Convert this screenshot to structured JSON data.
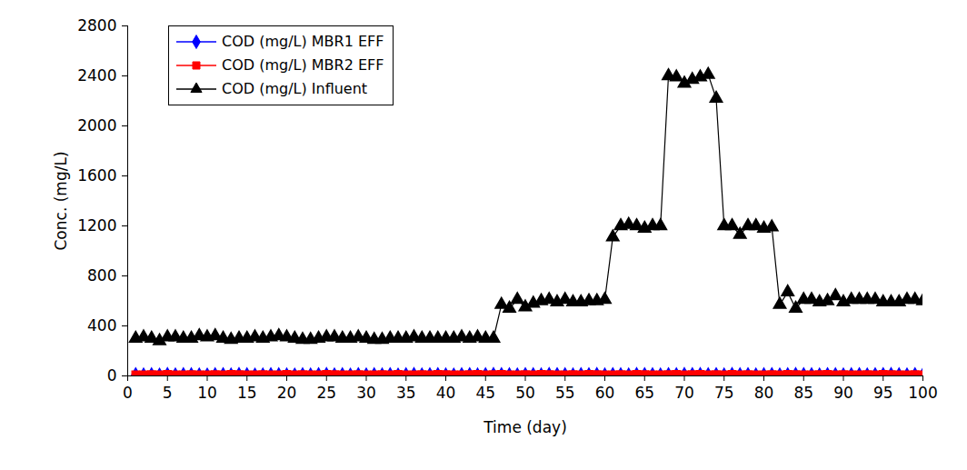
{
  "chart_data": {
    "type": "line",
    "xlabel": "Time (day)",
    "ylabel": "Conc. (mg/L)",
    "xlim": [
      0,
      100
    ],
    "xticks": [
      0,
      5,
      10,
      15,
      20,
      25,
      30,
      35,
      40,
      45,
      50,
      55,
      60,
      65,
      70,
      75,
      80,
      85,
      90,
      95,
      100
    ],
    "ylim": [
      0,
      2800
    ],
    "yticks": [
      0,
      400,
      800,
      1200,
      1600,
      2000,
      2400,
      2800
    ],
    "grid": false,
    "legend": "upper left",
    "x": [
      1,
      2,
      3,
      4,
      5,
      6,
      7,
      8,
      9,
      10,
      11,
      12,
      13,
      14,
      15,
      16,
      17,
      18,
      19,
      20,
      21,
      22,
      23,
      24,
      25,
      26,
      27,
      28,
      29,
      30,
      31,
      32,
      33,
      34,
      35,
      36,
      37,
      38,
      39,
      40,
      41,
      42,
      43,
      44,
      45,
      46,
      47,
      48,
      49,
      50,
      51,
      52,
      53,
      54,
      55,
      56,
      57,
      58,
      59,
      60,
      61,
      62,
      63,
      64,
      65,
      66,
      67,
      68,
      69,
      70,
      71,
      72,
      73,
      74,
      75,
      76,
      77,
      78,
      79,
      80,
      81,
      82,
      83,
      84,
      85,
      86,
      87,
      88,
      89,
      90,
      91,
      92,
      93,
      94,
      95,
      96,
      97,
      98,
      99,
      100
    ],
    "series": [
      {
        "name": "COD (mg/L) MBR1 EFF",
        "color": "#0000ff",
        "marker": "diamond",
        "values": [
          8,
          6,
          7,
          5,
          9,
          6,
          8,
          7,
          6,
          5,
          7,
          8,
          6,
          9,
          7,
          5,
          6,
          8,
          7,
          6,
          5,
          7,
          6,
          8,
          9,
          6,
          7,
          5,
          8,
          6,
          7,
          6,
          8,
          5,
          7,
          9,
          6,
          7,
          8,
          6,
          5,
          7,
          8,
          6,
          7,
          9,
          8,
          7,
          6,
          8,
          7,
          6,
          9,
          8,
          7,
          6,
          8,
          7,
          9,
          6,
          8,
          7,
          6,
          9,
          8,
          7,
          6,
          8,
          7,
          9,
          8,
          9,
          7,
          8,
          6,
          9,
          7,
          8,
          6,
          7,
          8,
          6,
          7,
          9,
          8,
          7,
          6,
          8,
          7,
          6,
          7,
          8,
          6,
          7,
          8,
          9,
          7,
          6,
          8,
          7
        ]
      },
      {
        "name": "COD (mg/L) MBR2 EFF",
        "color": "#ff0000",
        "marker": "square",
        "values": [
          10,
          9,
          11,
          10,
          12,
          9,
          10,
          11,
          10,
          9,
          11,
          10,
          12,
          11,
          9,
          10,
          11,
          10,
          9,
          12,
          10,
          11,
          9,
          10,
          12,
          11,
          10,
          9,
          11,
          10,
          9,
          11,
          10,
          12,
          10,
          9,
          11,
          10,
          12,
          11,
          10,
          9,
          11,
          12,
          10,
          11,
          12,
          10,
          9,
          11,
          10,
          12,
          11,
          10,
          9,
          11,
          10,
          12,
          11,
          10,
          9,
          11,
          10,
          12,
          11,
          10,
          9,
          11,
          12,
          10,
          11,
          12,
          10,
          11,
          9,
          12,
          10,
          11,
          10,
          9,
          11,
          10,
          12,
          11,
          10,
          9,
          11,
          12,
          10,
          11,
          10,
          9,
          11,
          10,
          12,
          11,
          10,
          9,
          11,
          10
        ]
      },
      {
        "name": "COD (mg/L) Influent",
        "color": "#000000",
        "marker": "triangle",
        "values": [
          300,
          310,
          300,
          280,
          310,
          310,
          300,
          300,
          320,
          310,
          320,
          300,
          290,
          300,
          300,
          310,
          300,
          310,
          320,
          310,
          300,
          290,
          290,
          300,
          310,
          310,
          300,
          300,
          310,
          300,
          290,
          290,
          300,
          300,
          300,
          310,
          300,
          300,
          300,
          300,
          300,
          310,
          300,
          310,
          300,
          300,
          570,
          540,
          610,
          550,
          580,
          600,
          610,
          590,
          610,
          590,
          590,
          600,
          600,
          610,
          1110,
          1200,
          1210,
          1200,
          1180,
          1200,
          1200,
          2400,
          2390,
          2340,
          2370,
          2390,
          2410,
          2220,
          1200,
          1200,
          1130,
          1200,
          1200,
          1180,
          1190,
          570,
          670,
          540,
          610,
          610,
          590,
          600,
          640,
          590,
          610,
          610,
          610,
          610,
          590,
          590,
          590,
          610,
          610,
          600
        ]
      }
    ]
  }
}
